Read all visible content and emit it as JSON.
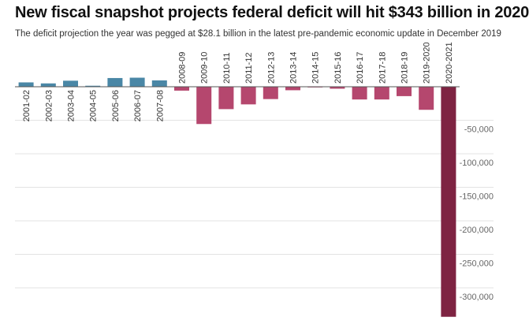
{
  "header": {
    "title": "New fiscal snapshot projects federal deficit will hit $343 billion in 2020",
    "subtitle": "The deficit projection the year was pegged at $28.1 billion in the latest pre-pandemic economic update in December 2019"
  },
  "colors": {
    "surplus": "#4a87a6",
    "deficit": "#b5476e",
    "projection": "#7e2342",
    "grid": "#e3e3e3",
    "axis": "#555555"
  },
  "chart_data": {
    "type": "bar",
    "title": "New fiscal snapshot projects federal deficit will hit $343 billion in 2020",
    "subtitle": "The deficit projection the year was pegged at $28.1 billion in the latest pre-pandemic economic update in December 2019",
    "xlabel": "",
    "ylabel": "",
    "categories": [
      "2001-02",
      "2002-03",
      "2003-04",
      "2004-05",
      "2005-06",
      "2006-07",
      "2007-08",
      "2008-09",
      "2009-10",
      "2010-11",
      "2011-12",
      "2012-13",
      "2013-14",
      "2014-15",
      "2015-16",
      "2016-17",
      "2017-18",
      "2018-19",
      "2019-2020",
      "2020-2021"
    ],
    "values": [
      6500,
      5000,
      9000,
      1500,
      13000,
      13500,
      9500,
      -5800,
      -55600,
      -33400,
      -26300,
      -18400,
      -5200,
      -1000,
      -2900,
      -19000,
      -19000,
      -14000,
      -34400,
      -343200
    ],
    "ylim": [
      -345000,
      15000
    ],
    "yticks": [
      -300000,
      -250000,
      -200000,
      -150000,
      -100000,
      -50000
    ],
    "ytick_labels": [
      "-300,000",
      "-250,000",
      "-200,000",
      "-150,000",
      "-100,000",
      "-50,000"
    ],
    "grid": true,
    "legend": "none"
  }
}
